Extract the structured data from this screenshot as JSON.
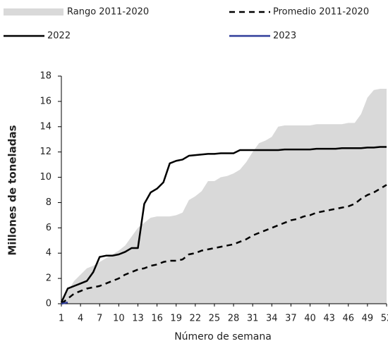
{
  "chart_data": {
    "type": "line",
    "x_label": "Número de semana",
    "y_label": "Millones de toneladas",
    "x": [
      1,
      2,
      3,
      4,
      5,
      6,
      7,
      8,
      9,
      10,
      11,
      12,
      13,
      14,
      15,
      16,
      17,
      18,
      19,
      20,
      21,
      22,
      23,
      24,
      25,
      26,
      27,
      28,
      29,
      30,
      31,
      32,
      33,
      34,
      35,
      36,
      37,
      38,
      39,
      40,
      41,
      42,
      43,
      44,
      45,
      46,
      47,
      48,
      49,
      50,
      51,
      52
    ],
    "xlim": [
      1,
      52
    ],
    "xticks": [
      1,
      4,
      7,
      10,
      13,
      16,
      19,
      22,
      25,
      28,
      31,
      34,
      37,
      40,
      43,
      46,
      49,
      52
    ],
    "ylim": [
      0,
      18
    ],
    "yticks": [
      0,
      2,
      4,
      6,
      8,
      10,
      12,
      14,
      16,
      18
    ],
    "series": [
      {
        "name": "Rango 2011-2020",
        "kind": "area",
        "color": "#d9d9d9",
        "values": [
          0,
          1,
          1.8,
          2.3,
          2.8,
          3.0,
          3.3,
          3.6,
          3.9,
          4.2,
          4.6,
          5.3,
          6.0,
          6.4,
          6.8,
          6.9,
          6.9,
          6.9,
          7.0,
          7.2,
          8.2,
          8.5,
          8.9,
          9.7,
          9.7,
          10.0,
          10.1,
          10.3,
          10.6,
          11.2,
          12.0,
          12.7,
          12.9,
          13.2,
          14.0,
          14.1,
          14.1,
          14.1,
          14.1,
          14.1,
          14.2,
          14.2,
          14.2,
          14.2,
          14.2,
          14.3,
          14.3,
          15.0,
          16.3,
          16.9,
          17.0,
          17.0
        ]
      },
      {
        "name": "Promedio 2011-2020",
        "kind": "line",
        "dashed": true,
        "color": "#000000",
        "values": [
          0,
          0.4,
          0.8,
          1.0,
          1.2,
          1.3,
          1.4,
          1.6,
          1.8,
          2.0,
          2.3,
          2.5,
          2.7,
          2.8,
          3.0,
          3.1,
          3.3,
          3.4,
          3.4,
          3.5,
          3.9,
          4.0,
          4.2,
          4.3,
          4.4,
          4.5,
          4.6,
          4.7,
          4.9,
          5.1,
          5.4,
          5.6,
          5.8,
          6.0,
          6.2,
          6.4,
          6.6,
          6.7,
          6.9,
          7.0,
          7.2,
          7.3,
          7.4,
          7.5,
          7.6,
          7.7,
          7.9,
          8.3,
          8.6,
          8.8,
          9.1,
          9.4
        ]
      },
      {
        "name": "2022",
        "kind": "line",
        "dashed": false,
        "color": "#000000",
        "values": [
          0.1,
          1.2,
          1.4,
          1.6,
          1.8,
          2.5,
          3.7,
          3.8,
          3.8,
          3.9,
          4.1,
          4.4,
          4.4,
          7.9,
          8.8,
          9.1,
          9.6,
          11.1,
          11.3,
          11.4,
          11.7,
          11.75,
          11.8,
          11.85,
          11.85,
          11.9,
          11.9,
          11.9,
          12.15,
          12.15,
          12.15,
          12.15,
          12.15,
          12.15,
          12.15,
          12.2,
          12.2,
          12.2,
          12.2,
          12.2,
          12.25,
          12.25,
          12.25,
          12.25,
          12.3,
          12.3,
          12.3,
          12.3,
          12.35,
          12.35,
          12.4,
          12.4
        ]
      },
      {
        "name": "2023",
        "kind": "line",
        "dashed": false,
        "color": "#2f3c99",
        "values": [
          0,
          0.1,
          null,
          null,
          null,
          null,
          null,
          null,
          null,
          null,
          null,
          null,
          null,
          null,
          null,
          null,
          null,
          null,
          null,
          null,
          null,
          null,
          null,
          null,
          null,
          null,
          null,
          null,
          null,
          null,
          null,
          null,
          null,
          null,
          null,
          null,
          null,
          null,
          null,
          null,
          null,
          null,
          null,
          null,
          null,
          null,
          null,
          null,
          null,
          null,
          null,
          null
        ]
      }
    ]
  }
}
